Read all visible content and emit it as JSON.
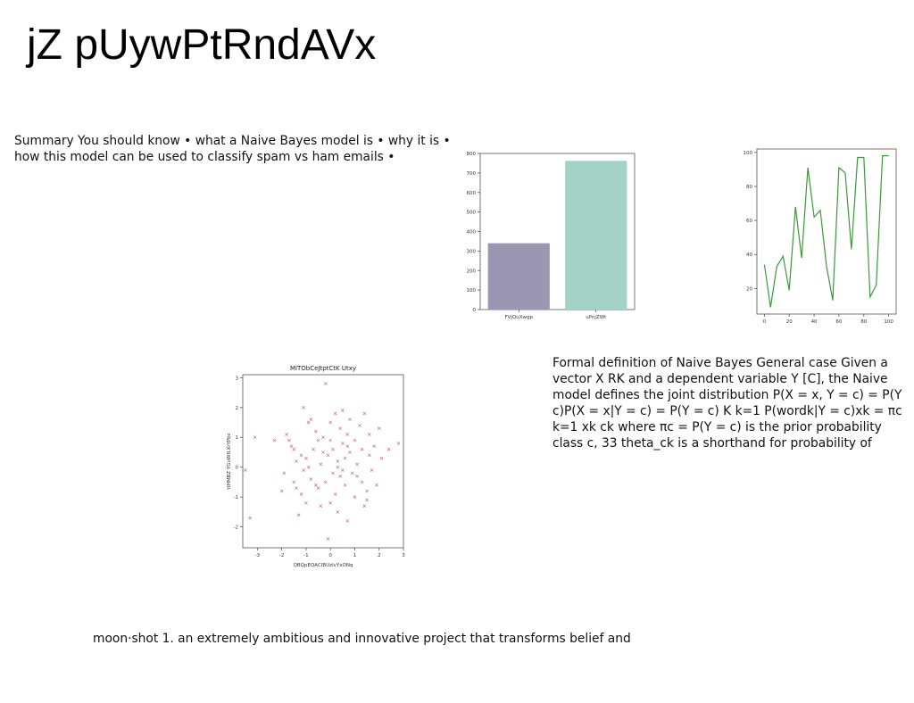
{
  "slide": {
    "title": "jZ pUywPtRndAVx",
    "summary_text": "Summary You should know • what a Naive Bayes model is • why it is • how this model can be used to classify spam vs ham emails •",
    "formal_text": "Formal definition of Naive Bayes General case Given a vector X  RK and a dependent variable Y  [C], the Naive model defines the joint distribution P(X = x, Y = c) = P(Y c)P(X = x|Y = c) = P(Y = c) K  k=1 P(wordk|Y = c)xk = πc  k=1 xk ck where πc = P(Y = c) is the prior probability class c, 33 theta_ck is a shorthand for probability of",
    "moonshot_text": "moon·shot 1. an extremely ambitious and innovative project that transforms belief and"
  },
  "chart_data": [
    {
      "type": "bar",
      "categories": [
        "FVjQuXwgp",
        "uPnjZWt"
      ],
      "values": [
        340,
        762
      ],
      "ylim": [
        0,
        800
      ],
      "yticks": [
        0,
        100,
        200,
        300,
        400,
        500,
        600,
        700,
        800
      ],
      "colors": [
        "#9b97b2",
        "#a3d3c7"
      ],
      "title": "",
      "xlabel": "",
      "ylabel": ""
    },
    {
      "type": "line",
      "x": [
        0,
        5,
        10,
        15,
        20,
        25,
        30,
        35,
        40,
        45,
        50,
        55,
        60,
        65,
        70,
        75,
        80,
        85,
        90,
        95,
        100
      ],
      "y": [
        34,
        9,
        33,
        39,
        19,
        68,
        38,
        91,
        62,
        66,
        33,
        13,
        91,
        88,
        43,
        97,
        97,
        15,
        22,
        98,
        98
      ],
      "xlim": [
        -6,
        106
      ],
      "ylim": [
        5,
        102
      ],
      "xticks": [
        0,
        20,
        40,
        60,
        80,
        100
      ],
      "yticks": [
        20,
        40,
        60,
        80,
        100
      ],
      "color": "#3a9a3a",
      "title": "",
      "xlabel": "",
      "ylabel": ""
    },
    {
      "type": "scatter",
      "title": "MlTObCeJtptCtK Utxy",
      "xlabel": "QBQpEQACIBUzlvYxONq",
      "ylabel": "ttHMBZ YGuWfLXrYPbz",
      "xlim": [
        -3.6,
        3
      ],
      "ylim": [
        -2.7,
        3.1
      ],
      "xticks": [
        -3,
        -2,
        -1,
        0,
        1,
        2,
        3
      ],
      "yticks": [
        -2,
        -1,
        0,
        1,
        2,
        3
      ],
      "marker": "x",
      "color": "#c0587e",
      "points": [
        [
          -3.5,
          -0.1
        ],
        [
          -3.3,
          -1.7
        ],
        [
          -3.1,
          1.0
        ],
        [
          -2.3,
          0.9
        ],
        [
          -2.0,
          -0.8
        ],
        [
          -1.9,
          -0.2
        ],
        [
          -1.8,
          1.1
        ],
        [
          -1.7,
          0.9
        ],
        [
          -1.6,
          0.7
        ],
        [
          -1.5,
          -0.5
        ],
        [
          -1.4,
          -0.7
        ],
        [
          -1.4,
          0.2
        ],
        [
          -1.3,
          -1.6
        ],
        [
          -1.2,
          0.4
        ],
        [
          -1.1,
          -0.1
        ],
        [
          -1.1,
          2.0
        ],
        [
          -1.0,
          -1.2
        ],
        [
          -1.0,
          0.3
        ],
        [
          -0.9,
          0.0
        ],
        [
          -0.9,
          1.5
        ],
        [
          -0.8,
          -0.4
        ],
        [
          -0.7,
          0.6
        ],
        [
          -0.6,
          1.2
        ],
        [
          -0.5,
          -0.7
        ],
        [
          -0.5,
          0.9
        ],
        [
          -0.4,
          -1.3
        ],
        [
          -0.4,
          0.1
        ],
        [
          -0.3,
          1.0
        ],
        [
          -0.2,
          2.8
        ],
        [
          -0.2,
          -0.5
        ],
        [
          -0.1,
          0.4
        ],
        [
          -0.1,
          -2.4
        ],
        [
          0.0,
          0.9
        ],
        [
          0.0,
          1.5
        ],
        [
          0.1,
          -0.2
        ],
        [
          0.1,
          0.6
        ],
        [
          0.2,
          1.8
        ],
        [
          0.2,
          -0.9
        ],
        [
          0.3,
          0.2
        ],
        [
          0.3,
          -1.5
        ],
        [
          0.4,
          1.3
        ],
        [
          0.4,
          -0.3
        ],
        [
          0.5,
          0.8
        ],
        [
          0.5,
          1.9
        ],
        [
          0.6,
          -0.6
        ],
        [
          0.6,
          0.3
        ],
        [
          0.7,
          1.1
        ],
        [
          0.7,
          -1.8
        ],
        [
          0.8,
          0.5
        ],
        [
          0.8,
          1.6
        ],
        [
          0.9,
          -0.2
        ],
        [
          1.0,
          0.9
        ],
        [
          1.0,
          -1.0
        ],
        [
          1.1,
          0.1
        ],
        [
          1.2,
          1.4
        ],
        [
          1.3,
          -0.5
        ],
        [
          1.3,
          0.6
        ],
        [
          1.4,
          1.8
        ],
        [
          1.4,
          -1.3
        ],
        [
          1.5,
          -0.8
        ],
        [
          1.6,
          0.4
        ],
        [
          1.6,
          1.1
        ],
        [
          1.7,
          -0.1
        ],
        [
          1.8,
          0.7
        ],
        [
          1.9,
          -0.6
        ],
        [
          2.0,
          1.3
        ],
        [
          2.1,
          0.3
        ],
        [
          2.4,
          0.6
        ],
        [
          2.8,
          0.8
        ],
        [
          0.0,
          -1.2
        ],
        [
          -0.6,
          -0.6
        ],
        [
          -1.2,
          -0.9
        ],
        [
          0.3,
          0.0
        ],
        [
          1.1,
          -0.3
        ],
        [
          -0.3,
          0.5
        ],
        [
          0.7,
          0.7
        ],
        [
          -0.8,
          1.6
        ],
        [
          0.5,
          -0.1
        ],
        [
          -1.5,
          0.6
        ],
        [
          1.5,
          -1.1
        ]
      ]
    }
  ]
}
